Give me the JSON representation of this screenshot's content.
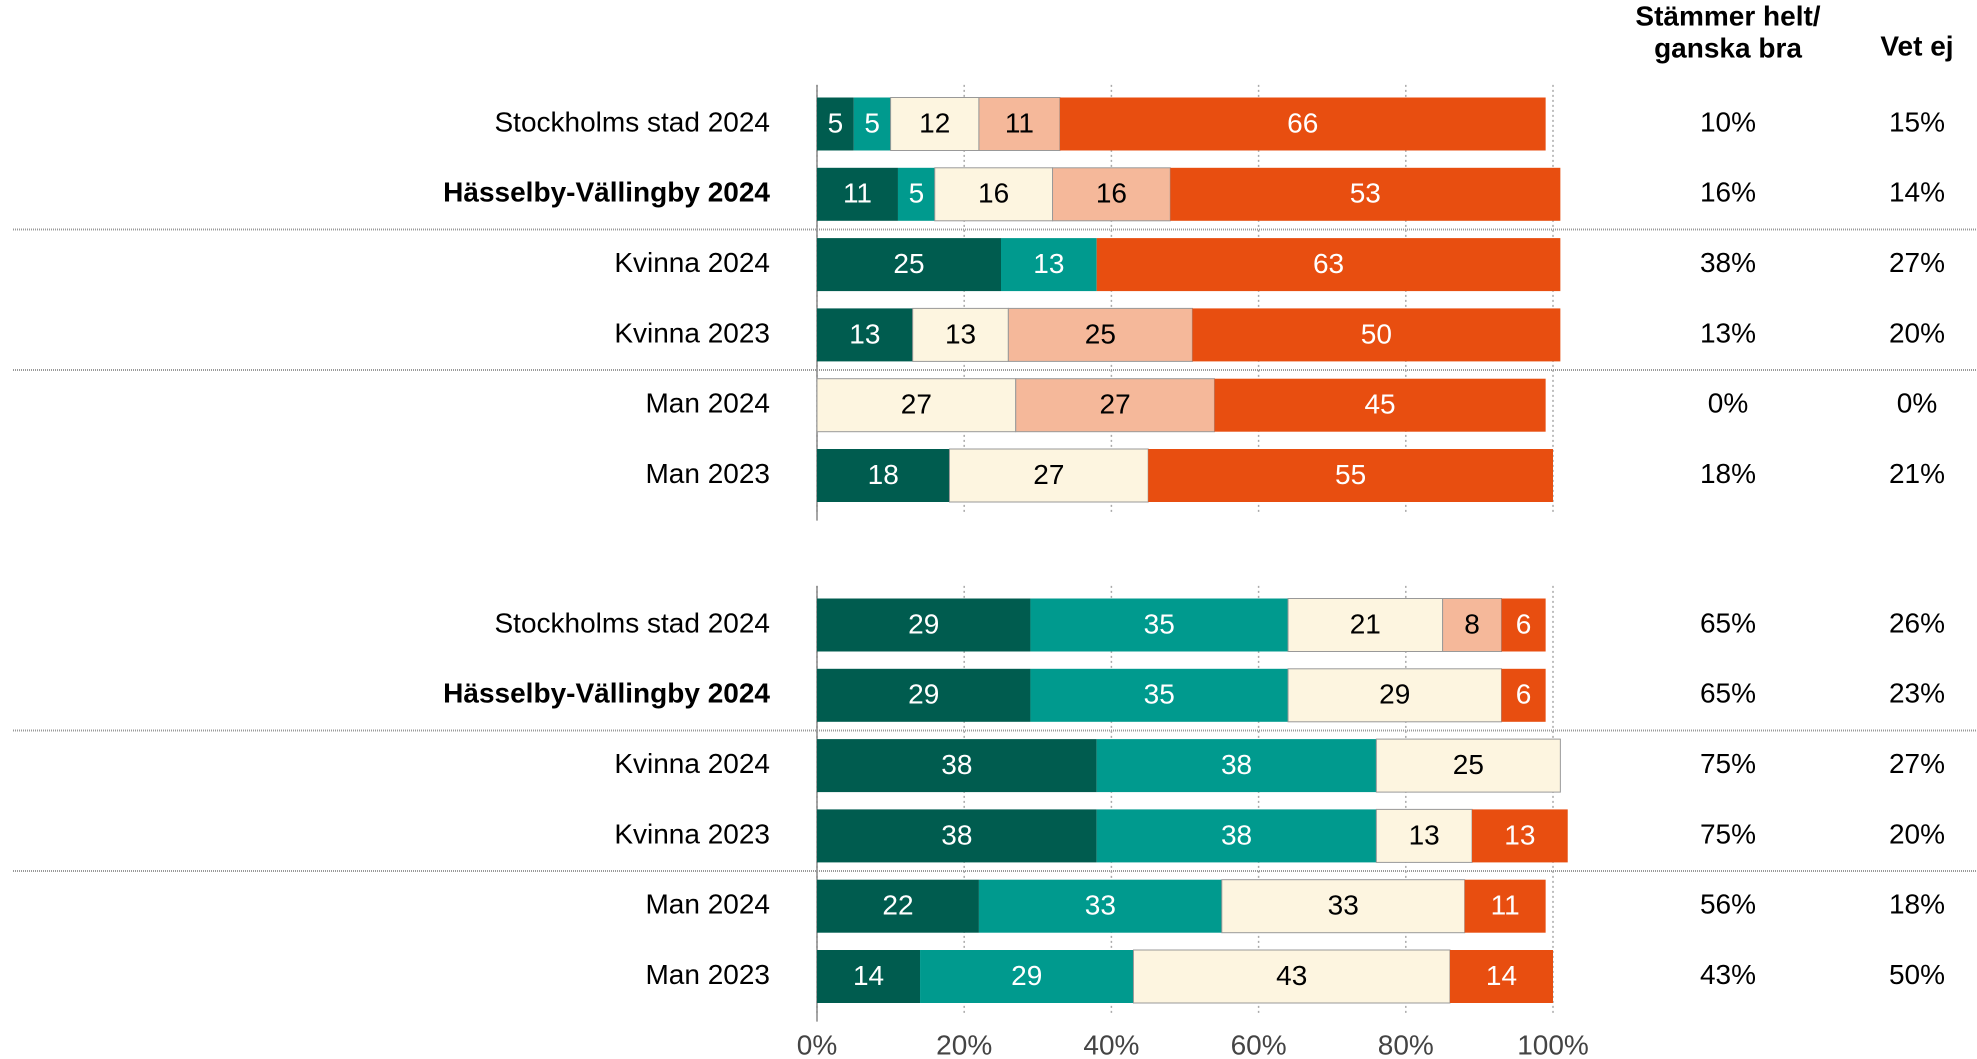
{
  "column_headers": [
    [
      "Stämmer helt/",
      "ganska bra"
    ],
    [
      "Vet ej"
    ]
  ],
  "chart_data": [
    {
      "type": "stacked-bar-horizontal",
      "categories": [
        "Stockholms stad 2024",
        "Hässelby-Vällingby 2024",
        "Kvinna 2024",
        "Kvinna 2023",
        "Man 2024",
        "Man 2023"
      ],
      "bold_categories": [
        1
      ],
      "xlim": [
        0,
        100
      ],
      "grid": true,
      "series": [
        {
          "color": "#005c4f",
          "values": [
            5,
            11,
            25,
            13,
            null,
            18
          ]
        },
        {
          "color": "#009a8e",
          "values": [
            5,
            5,
            13,
            null,
            null,
            null
          ]
        },
        {
          "color": "#fdf5e0",
          "values": [
            12,
            16,
            null,
            13,
            27,
            27
          ]
        },
        {
          "color": "#f5b89a",
          "values": [
            11,
            16,
            null,
            25,
            27,
            null
          ]
        },
        {
          "color": "#e84e10",
          "values": [
            66,
            53,
            63,
            50,
            45,
            55
          ]
        }
      ],
      "columns": [
        {
          "values": [
            10,
            16,
            38,
            13,
            0,
            18
          ],
          "value_labels": [
            "10%",
            "16%",
            "38%",
            "13%",
            "0%",
            "18%"
          ]
        },
        {
          "values": [
            15,
            14,
            27,
            20,
            0,
            21
          ],
          "value_labels": [
            "15%",
            "14%",
            "27%",
            "20%",
            "0%",
            "21%"
          ]
        }
      ]
    },
    {
      "type": "stacked-bar-horizontal",
      "categories": [
        "Stockholms stad 2024",
        "Hässelby-Vällingby 2024",
        "Kvinna 2024",
        "Kvinna 2023",
        "Man 2024",
        "Man 2023"
      ],
      "bold_categories": [
        1
      ],
      "xlim": [
        0,
        100
      ],
      "grid": true,
      "xticks": [
        {
          "value": 0,
          "label": "0%"
        },
        {
          "value": 20,
          "label": "20%"
        },
        {
          "value": 40,
          "label": "40%"
        },
        {
          "value": 60,
          "label": "60%"
        },
        {
          "value": 80,
          "label": "80%"
        },
        {
          "value": 100,
          "label": "100%"
        }
      ],
      "series": [
        {
          "color": "#005c4f",
          "values": [
            29,
            29,
            38,
            38,
            22,
            14
          ]
        },
        {
          "color": "#009a8e",
          "values": [
            35,
            35,
            38,
            38,
            33,
            29
          ]
        },
        {
          "color": "#fdf5e0",
          "values": [
            21,
            29,
            25,
            13,
            33,
            43
          ]
        },
        {
          "color": "#f5b89a",
          "values": [
            8,
            null,
            null,
            null,
            null,
            null
          ]
        },
        {
          "color": "#e84e10",
          "values": [
            6,
            6,
            null,
            13,
            11,
            14
          ]
        }
      ],
      "columns": [
        {
          "values": [
            65,
            65,
            75,
            75,
            56,
            43
          ],
          "value_labels": [
            "65%",
            "65%",
            "75%",
            "75%",
            "56%",
            "43%"
          ]
        },
        {
          "values": [
            26,
            23,
            27,
            20,
            18,
            50
          ],
          "value_labels": [
            "26%",
            "23%",
            "27%",
            "20%",
            "18%",
            "50%"
          ]
        }
      ]
    }
  ]
}
